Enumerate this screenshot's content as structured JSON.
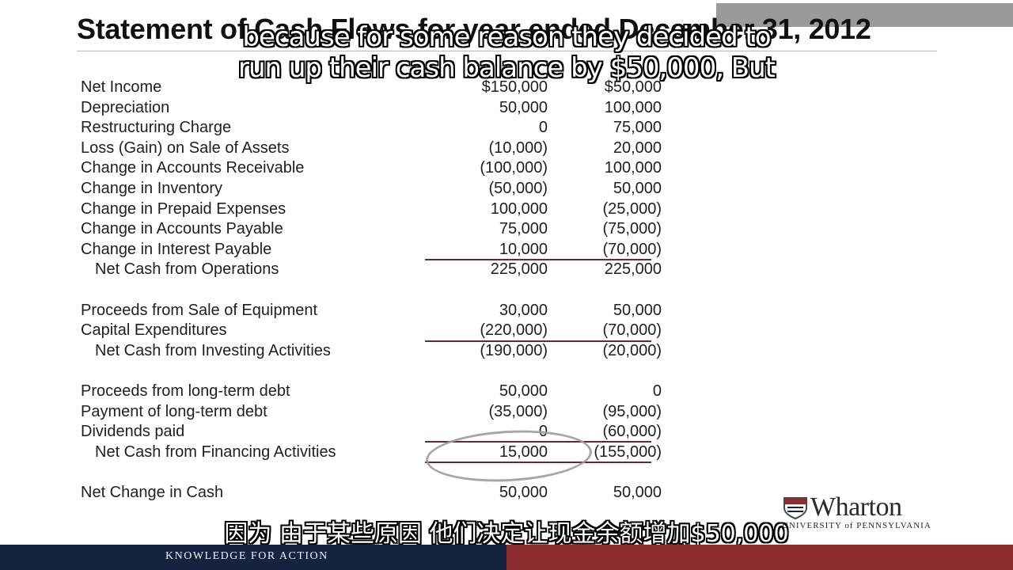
{
  "slide": {
    "title": "Statement of Cash Flows for year ended December 31, 2012"
  },
  "statement": {
    "rows": [
      {
        "label": "Net Income",
        "col1": "$150,000",
        "col2": "$50,000"
      },
      {
        "label": "Depreciation",
        "col1": "50,000",
        "col2": "100,000"
      },
      {
        "label": "Restructuring Charge",
        "col1": "0",
        "col2": "75,000"
      },
      {
        "label": "Loss (Gain) on Sale of Assets",
        "col1": "(10,000)",
        "col2": "20,000"
      },
      {
        "label": "Change in Accounts Receivable",
        "col1": "(100,000)",
        "col2": "100,000"
      },
      {
        "label": "Change in Inventory",
        "col1": "(50,000)",
        "col2": "50,000"
      },
      {
        "label": "Change in Prepaid Expenses",
        "col1": "100,000",
        "col2": "(25,000)"
      },
      {
        "label": "Change in Accounts Payable",
        "col1": "75,000",
        "col2": "(75,000)"
      },
      {
        "label": "Change in Interest Payable",
        "col1": "10,000",
        "col2": "(70,000)"
      },
      {
        "label": "Net Cash from Operations",
        "col1": "225,000",
        "col2": "225,000"
      },
      {
        "label": "Proceeds from Sale of Equipment",
        "col1": "30,000",
        "col2": "50,000"
      },
      {
        "label": "Capital Expenditures",
        "col1": "(220,000)",
        "col2": "(70,000)"
      },
      {
        "label": "Net Cash from Investing Activities",
        "col1": "(190,000)",
        "col2": "(20,000)"
      },
      {
        "label": "Proceeds from long-term debt",
        "col1": "50,000",
        "col2": "0"
      },
      {
        "label": "Payment of long-term debt",
        "col1": "(35,000)",
        "col2": "(95,000)"
      },
      {
        "label": "Dividends paid",
        "col1": "0",
        "col2": "(60,000)"
      },
      {
        "label": "Net Cash from Financing Activities",
        "col1": "15,000",
        "col2": "(155,000)"
      },
      {
        "label": "Net Change in Cash",
        "col1": "50,000",
        "col2": "50,000"
      }
    ]
  },
  "subtitles": {
    "line1": "because for some reason they decided to",
    "line2": "run up their cash balance by $50,000, But",
    "chinese": "因为 由于某些原因 他们决定让现金余额增加$50,000"
  },
  "logo": {
    "name": "Wharton",
    "subtitle": "UNIVERSITY of PENNSYLVANIA"
  },
  "footer": {
    "tagline": "KNOWLEDGE FOR ACTION"
  },
  "colors": {
    "footer_navy": "#14233f",
    "footer_red": "#8c2d2f",
    "rule_color": "#6b2a2a"
  }
}
